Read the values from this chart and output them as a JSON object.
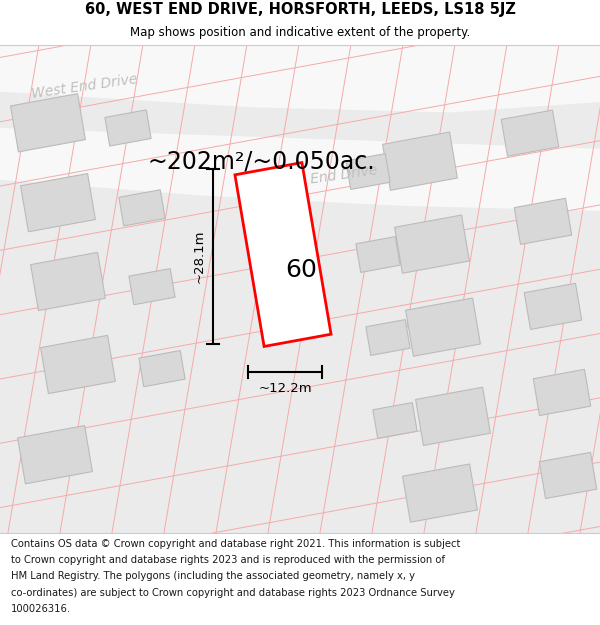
{
  "title": "60, WEST END DRIVE, HORSFORTH, LEEDS, LS18 5JZ",
  "subtitle": "Map shows position and indicative extent of the property.",
  "area_text": "~202m²/~0.050ac.",
  "dim_width": "~12.2m",
  "dim_height": "~28.1m",
  "property_number": "60",
  "footer_lines": [
    "Contains OS data © Crown copyright and database right 2021. This information is subject",
    "to Crown copyright and database rights 2023 and is reproduced with the permission of",
    "HM Land Registry. The polygons (including the associated geometry, namely x, y",
    "co-ordinates) are subject to Crown copyright and database rights 2023 Ordnance Survey",
    "100026316."
  ],
  "map_bg": "#ebebeb",
  "road_fill": "#f8f8f8",
  "building_fill": "#d8d8d8",
  "building_stroke": "#bbbbbb",
  "plot_fill": "#ffffff",
  "plot_stroke": "#ff0000",
  "grid_color": "#f5aaaa",
  "road_label_color": "#c0c0c0",
  "title_fontsize": 10.5,
  "subtitle_fontsize": 8.5,
  "area_fontsize": 17,
  "dim_fontsize": 9.5,
  "footer_fontsize": 7.2,
  "road_label_size": 10,
  "property_fontsize": 18
}
